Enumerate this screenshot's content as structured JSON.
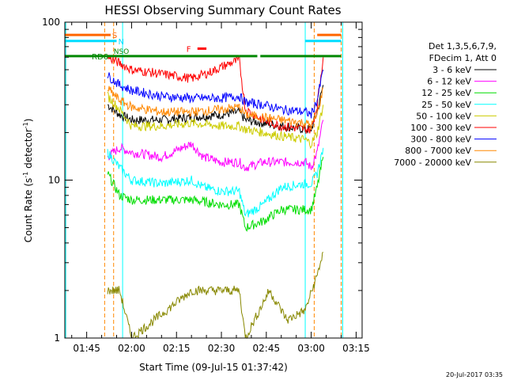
{
  "chart_data": {
    "type": "line",
    "title": "HESSI Observing Summary Count Rates",
    "xlabel": "Start Time (09-Jul-15 01:37:42)",
    "ylabel_main": "Count Rate (s",
    "ylabel_sup1": "-1",
    "ylabel_mid": " detector",
    "ylabel_sup2": "-1",
    "ylabel_end": ")",
    "xlim": [
      "01:37:42",
      "03:17:00"
    ],
    "ylim": [
      1,
      100
    ],
    "yscale": "log",
    "x_ticks": [
      "01:45",
      "02:00",
      "02:15",
      "02:30",
      "02:45",
      "03:00",
      "03:15"
    ],
    "y_ticks": [
      "1",
      "10",
      "100"
    ],
    "legend_header": [
      "Det 1,3,5,6,7,9,",
      "FDecim 1, Att 0"
    ],
    "series": [
      {
        "name": "3 - 6 keV",
        "color": "#000000",
        "points": [
          [
            "01:52",
            30
          ],
          [
            "01:56",
            26
          ],
          [
            "02:00",
            24
          ],
          [
            "02:10",
            24
          ],
          [
            "02:20",
            25
          ],
          [
            "02:30",
            26
          ],
          [
            "02:36",
            27
          ],
          [
            "02:38",
            24
          ],
          [
            "02:44",
            23
          ],
          [
            "02:50",
            22
          ],
          [
            "02:58",
            21
          ],
          [
            "03:00",
            21
          ],
          [
            "03:02",
            27
          ],
          [
            "03:04",
            40
          ]
        ]
      },
      {
        "name": "6 - 12 keV",
        "color": "#ff00ff",
        "points": [
          [
            "01:52",
            14
          ],
          [
            "01:56",
            16
          ],
          [
            "02:00",
            15
          ],
          [
            "02:10",
            14
          ],
          [
            "02:20",
            17
          ],
          [
            "02:24",
            14
          ],
          [
            "02:30",
            13
          ],
          [
            "02:36",
            13
          ],
          [
            "02:38",
            12
          ],
          [
            "02:44",
            13
          ],
          [
            "02:50",
            13
          ],
          [
            "02:58",
            13
          ],
          [
            "03:00",
            12
          ],
          [
            "03:02",
            15
          ],
          [
            "03:04",
            24
          ]
        ]
      },
      {
        "name": "12 - 25 keV",
        "color": "#00dd00",
        "points": [
          [
            "01:52",
            11
          ],
          [
            "01:56",
            8
          ],
          [
            "02:00",
            7.5
          ],
          [
            "02:10",
            7.5
          ],
          [
            "02:20",
            7.5
          ],
          [
            "02:30",
            7
          ],
          [
            "02:36",
            7
          ],
          [
            "02:38",
            5
          ],
          [
            "02:44",
            5.5
          ],
          [
            "02:50",
            6.5
          ],
          [
            "02:58",
            6.5
          ],
          [
            "03:00",
            6.5
          ],
          [
            "03:02",
            9
          ],
          [
            "03:04",
            14
          ]
        ]
      },
      {
        "name": "25 - 50 keV",
        "color": "#00ffff",
        "points": [
          [
            "01:52",
            15
          ],
          [
            "01:56",
            12
          ],
          [
            "02:00",
            10
          ],
          [
            "02:10",
            9.5
          ],
          [
            "02:20",
            10
          ],
          [
            "02:24",
            9
          ],
          [
            "02:30",
            8.5
          ],
          [
            "02:36",
            8.5
          ],
          [
            "02:38",
            6
          ],
          [
            "02:44",
            7
          ],
          [
            "02:50",
            9
          ],
          [
            "02:58",
            9.5
          ],
          [
            "03:00",
            9.5
          ],
          [
            "03:02",
            11
          ],
          [
            "03:04",
            16
          ]
        ]
      },
      {
        "name": "50 - 100 keV",
        "color": "#cccc00",
        "points": [
          [
            "01:52",
            34
          ],
          [
            "01:56",
            28
          ],
          [
            "02:00",
            22
          ],
          [
            "02:10",
            22
          ],
          [
            "02:20",
            23
          ],
          [
            "02:30",
            22
          ],
          [
            "02:36",
            22
          ],
          [
            "02:38",
            21
          ],
          [
            "02:44",
            20
          ],
          [
            "02:50",
            19
          ],
          [
            "02:58",
            18
          ],
          [
            "03:00",
            17
          ],
          [
            "03:02",
            20
          ],
          [
            "03:04",
            30
          ]
        ]
      },
      {
        "name": "100 - 300 keV",
        "color": "#ff0000",
        "points": [
          [
            "01:52",
            60
          ],
          [
            "01:56",
            55
          ],
          [
            "02:00",
            50
          ],
          [
            "02:10",
            47
          ],
          [
            "02:20",
            44
          ],
          [
            "02:26",
            48
          ],
          [
            "02:30",
            52
          ],
          [
            "02:34",
            56
          ],
          [
            "02:36",
            57
          ],
          [
            "02:38",
            28
          ],
          [
            "02:44",
            24
          ],
          [
            "02:50",
            22
          ],
          [
            "02:58",
            21
          ],
          [
            "03:00",
            21
          ],
          [
            "03:02",
            30
          ],
          [
            "03:04",
            60
          ]
        ]
      },
      {
        "name": "300 - 800 keV",
        "color": "#0000ff",
        "points": [
          [
            "01:52",
            46
          ],
          [
            "01:56",
            40
          ],
          [
            "02:00",
            37
          ],
          [
            "02:10",
            34
          ],
          [
            "02:20",
            33
          ],
          [
            "02:30",
            33
          ],
          [
            "02:36",
            34
          ],
          [
            "02:38",
            31
          ],
          [
            "02:44",
            30
          ],
          [
            "02:50",
            28
          ],
          [
            "02:58",
            27
          ],
          [
            "03:00",
            26
          ],
          [
            "03:02",
            32
          ],
          [
            "03:04",
            50
          ]
        ]
      },
      {
        "name": "800 - 7000 keV",
        "color": "#ff8800",
        "points": [
          [
            "01:52",
            38
          ],
          [
            "01:56",
            32
          ],
          [
            "02:00",
            29
          ],
          [
            "02:10",
            27
          ],
          [
            "02:20",
            27
          ],
          [
            "02:30",
            28
          ],
          [
            "02:36",
            29
          ],
          [
            "02:38",
            26
          ],
          [
            "02:44",
            25
          ],
          [
            "02:50",
            24
          ],
          [
            "02:58",
            23
          ],
          [
            "03:00",
            22
          ],
          [
            "03:02",
            26
          ],
          [
            "03:04",
            38
          ]
        ]
      },
      {
        "name": "7000 - 20000 keV",
        "color": "#888800",
        "points": [
          [
            "01:52",
            2
          ],
          [
            "01:56",
            2
          ],
          [
            "02:00",
            1
          ],
          [
            "02:20",
            2
          ],
          [
            "02:30",
            2
          ],
          [
            "02:36",
            2
          ],
          [
            "02:38",
            1
          ],
          [
            "02:46",
            2
          ],
          [
            "02:52",
            1.3
          ],
          [
            "02:58",
            1.5
          ],
          [
            "03:02",
            2.5
          ],
          [
            "03:04",
            3.5
          ]
        ]
      }
    ],
    "flags": [
      {
        "label": "S",
        "color": "#ff6600",
        "y": 83,
        "segments": [
          [
            "01:37:42",
            "01:53"
          ],
          [
            "03:02",
            "03:10"
          ]
        ]
      },
      {
        "label": "N",
        "color": "#00ddff",
        "y": 76,
        "segments": [
          [
            "01:37:42",
            "01:55"
          ],
          [
            "02:58",
            "03:10"
          ]
        ]
      },
      {
        "label": "F",
        "color": "#ff0000",
        "y": 68,
        "segments": [
          [
            "02:22",
            "02:25"
          ]
        ]
      },
      {
        "label": "RD6",
        "color": "#008800",
        "y": 61,
        "segments": [
          [
            "01:37:42",
            "02:36"
          ],
          [
            "02:36",
            "02:42"
          ],
          [
            "02:43",
            "03:10"
          ]
        ]
      }
    ],
    "flag_extra_labels": [
      "NSO"
    ],
    "vertical_markers": [
      {
        "color": "#ff8800",
        "times": [
          "01:51",
          "01:54",
          "03:01",
          "03:10"
        ],
        "style": "dashed"
      },
      {
        "color": "#00ffff",
        "times": [
          "01:38",
          "01:57",
          "02:58",
          "03:10:30"
        ],
        "style": "solid"
      }
    ],
    "grid": false,
    "legend_placement": "right"
  },
  "footer": {
    "timestamp": "20-Jul-2017 03:35"
  }
}
